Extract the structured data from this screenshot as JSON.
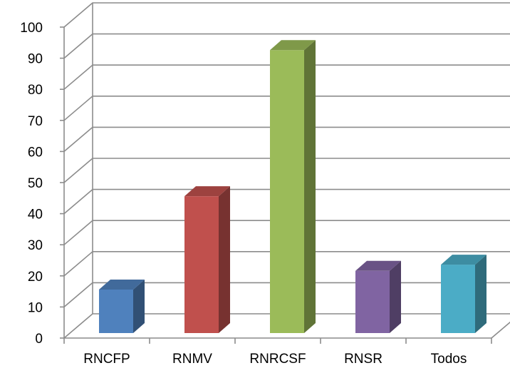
{
  "chart_data": {
    "type": "bar",
    "categories": [
      "RNCFP",
      "RNMV",
      "RNRCSF",
      "RNSR",
      "Todos"
    ],
    "values": [
      14,
      44,
      91,
      20,
      22
    ],
    "colors": [
      "#4f81bd",
      "#c0504d",
      "#9bbb59",
      "#8064a2",
      "#4bacc6"
    ],
    "ylim": [
      0,
      100
    ],
    "yticks": [
      "0",
      "10",
      "20",
      "30",
      "40",
      "50",
      "60",
      "70",
      "80",
      "90",
      "100"
    ],
    "grid": true,
    "legend": "none",
    "three_d": true
  }
}
